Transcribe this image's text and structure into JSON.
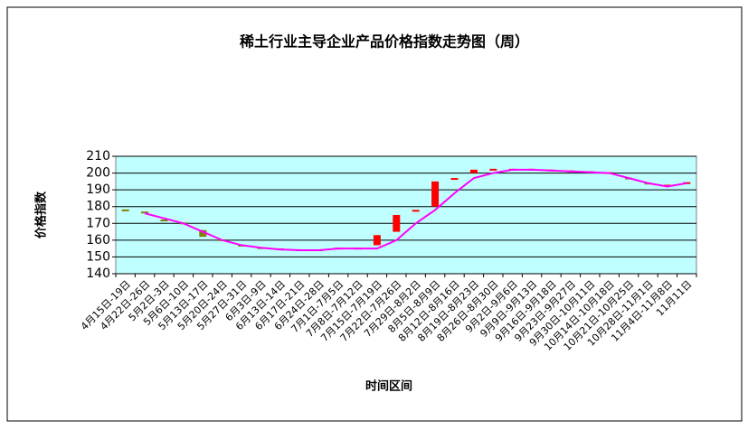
{
  "chart_data": {
    "type": "candlestick",
    "title": "稀土行业主导企业产品价格指数走势图（周）",
    "y_label": "价格指数",
    "x_label": "时间区间",
    "categories": [
      "4月15日-19日",
      "4月22日-26日",
      "5月2日-3日",
      "5月6日-10日",
      "5月13日-17日",
      "5月20日-24日",
      "5月27日-31日",
      "6月3日-9日",
      "6月13日-14日",
      "6月17日-21日",
      "6月24日-28日",
      "7月1日-7月5日",
      "7月8日-7月12日",
      "7月15日-7月19日",
      "7月22日-7月26日",
      "7月29日-8月2日",
      "8月5日-8月9日",
      "8月12日-8月16日",
      "8月19日-8月23日",
      "8月26日-8月30日",
      "9月2日-9月6日",
      "9月9日-9月13日",
      "9月16日-9月18日",
      "9月23日-9月27日",
      "9月30日-10月11日",
      "10月14日-10月18日",
      "10月21日-10月25日",
      "10月28日-11月1日",
      "11月4日-11月8日",
      "11月11日"
    ],
    "open": [
      178,
      177,
      172,
      170.5,
      166,
      160.5,
      157,
      155.5,
      154.5,
      154,
      154,
      155,
      155,
      157,
      165,
      177,
      180,
      196,
      200,
      202,
      202,
      202,
      201.5,
      201,
      200.5,
      200,
      197,
      194,
      192,
      194
    ],
    "close": [
      177.5,
      176,
      171.5,
      169.5,
      162,
      159.5,
      156.5,
      155,
      154.5,
      154,
      154,
      155,
      155,
      163,
      175,
      178,
      195,
      197,
      202,
      202,
      202,
      202,
      201.5,
      201,
      200.5,
      200,
      196.5,
      193.5,
      193,
      194
    ],
    "up_color": "#ff0000",
    "down_color": "#808000",
    "line": {
      "color": "#ff00ff",
      "values": [
        null,
        176,
        173,
        170,
        165,
        160,
        157,
        155.5,
        154.5,
        154,
        154,
        155,
        155,
        155,
        160,
        170,
        178,
        188,
        197,
        200,
        202,
        202,
        201.5,
        201,
        200.5,
        200,
        197,
        194,
        192,
        194
      ]
    },
    "ylim": [
      140,
      210
    ],
    "yticks": [
      140,
      150,
      160,
      170,
      180,
      190,
      200,
      210
    ],
    "grid": true,
    "plot_color": "#c0ffff"
  }
}
